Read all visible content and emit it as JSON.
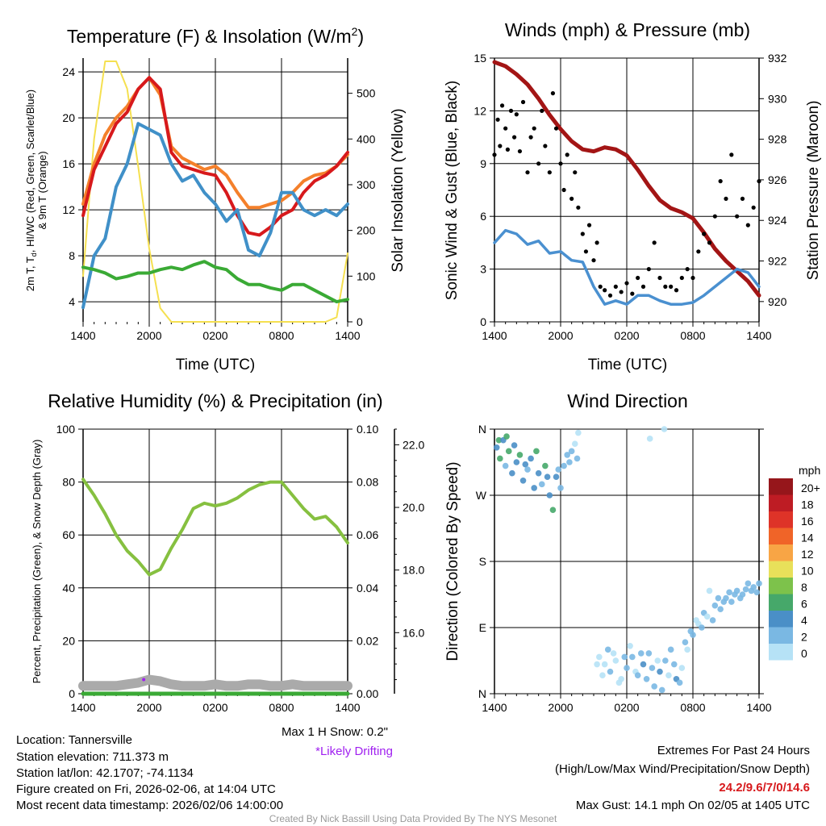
{
  "colors": {
    "temp": "#d7191c",
    "temp9m": "#f4802b",
    "dewpoint": "#3aaa35",
    "hiwc": "#4090c8",
    "solar": "#f5e050",
    "wind": "#4a90d0",
    "gust": "#000000",
    "pressure": "#a31515",
    "rh": "#86c040",
    "precip": "#3aaa35",
    "snow": "#aaaaaa",
    "drift": "#a020f0",
    "extremes": "#d7191c"
  },
  "xticks": [
    "1400",
    "2000",
    "0200",
    "0800",
    "1400"
  ],
  "chart_data": [
    {
      "type": "line",
      "title": "Temperature (F) & Insolation (W/m",
      "title_sup": "2",
      "title_end": ")",
      "xlabel": "Time (UTC)",
      "ylabel_line1": "2m T, T",
      "ylabel_sub": "d",
      "ylabel_line1b": ", HI/WC (Red, Green, Scarlet/Blue)",
      "ylabel_line2": "& 9m T (Orange)",
      "y2label": "Solar Insolation (Yellow)",
      "ylim": [
        2.25,
        25.2
      ],
      "y2lim": [
        0,
        577
      ],
      "yticks": [
        4,
        8,
        12,
        16,
        20,
        24
      ],
      "y2ticks": [
        0,
        100,
        200,
        300,
        400,
        500
      ],
      "x_hours": [
        0,
        1,
        2,
        3,
        4,
        5,
        6,
        7,
        8,
        9,
        10,
        11,
        12,
        13,
        14,
        15,
        16,
        17,
        18,
        19,
        20,
        21,
        22,
        23,
        24
      ],
      "series": [
        {
          "name": "Solar Insolation",
          "axis": "y2",
          "color_key": "solar",
          "values": [
            100,
            400,
            570,
            570,
            510,
            340,
            160,
            30,
            0,
            0,
            0,
            0,
            0,
            0,
            0,
            0,
            0,
            0,
            0,
            0,
            0,
            0,
            0,
            10,
            150
          ]
        },
        {
          "name": "9m T",
          "axis": "y",
          "color_key": "temp9m",
          "values": [
            12.5,
            16,
            18.5,
            20,
            21,
            22.5,
            23.5,
            22,
            17.5,
            16.5,
            16,
            15.5,
            15.8,
            15,
            13.5,
            12.2,
            12.2,
            12.5,
            12.8,
            13.5,
            14.5,
            15,
            15.2,
            15.8,
            16.8
          ]
        },
        {
          "name": "2m T",
          "axis": "y",
          "color_key": "temp",
          "values": [
            11.5,
            15.5,
            17.5,
            19.5,
            20.5,
            22.5,
            23.5,
            22.5,
            17,
            15.8,
            15.5,
            15.2,
            15,
            13.5,
            11.5,
            10,
            9.8,
            10.5,
            11.5,
            12,
            13.5,
            14.5,
            15,
            15.8,
            17
          ]
        },
        {
          "name": "HI/WC",
          "axis": "y",
          "color_key": "hiwc",
          "values": [
            3.5,
            8,
            9.5,
            14,
            16,
            19.5,
            19,
            18.5,
            16,
            14.5,
            15,
            13.5,
            12.5,
            11,
            12,
            8.5,
            8,
            10,
            13.5,
            13.5,
            12,
            11.5,
            12,
            11.5,
            12.5
          ]
        },
        {
          "name": "Dewpoint",
          "axis": "y",
          "color_key": "dewpoint",
          "values": [
            7,
            6.8,
            6.5,
            6,
            6.2,
            6.5,
            6.5,
            6.8,
            7,
            6.8,
            7.2,
            7.5,
            7,
            6.8,
            6,
            5.5,
            5.5,
            5.2,
            5,
            5.5,
            5.5,
            5,
            4.5,
            4,
            4.2
          ]
        }
      ]
    },
    {
      "type": "line",
      "title": "Winds (mph) & Pressure (mb)",
      "xlabel": "Time (UTC)",
      "ylabel": "Sonic Wind & Gust (Blue, Black)",
      "y2label": "Station Pressure (Maroon)",
      "ylim": [
        0,
        15
      ],
      "y2lim": [
        919,
        932
      ],
      "yticks": [
        0,
        3,
        6,
        9,
        12,
        15
      ],
      "y2ticks": [
        920,
        922,
        924,
        926,
        928,
        930,
        932
      ],
      "x_hours": [
        0,
        1,
        2,
        3,
        4,
        5,
        6,
        7,
        8,
        9,
        10,
        11,
        12,
        13,
        14,
        15,
        16,
        17,
        18,
        19,
        20,
        21,
        22,
        23,
        24
      ],
      "pressure": [
        931.8,
        931.6,
        931.2,
        930.7,
        930,
        929.2,
        928.5,
        927.9,
        927.5,
        927.4,
        927.6,
        927.5,
        927.2,
        926.5,
        925.7,
        925,
        924.6,
        924.4,
        924.1,
        923.4,
        922.6,
        922,
        921.5,
        921,
        920.3
      ],
      "wind": [
        4.5,
        5.2,
        5,
        4.4,
        4.6,
        3.9,
        4,
        3.5,
        3.4,
        2,
        1,
        1.2,
        1,
        1.5,
        1.5,
        1.2,
        1,
        1,
        1.1,
        1.5,
        2,
        2.5,
        3,
        2.8,
        2
      ],
      "gusts": [
        [
          0,
          9.5
        ],
        [
          0.3,
          11.5
        ],
        [
          0.5,
          10
        ],
        [
          0.7,
          12.3
        ],
        [
          1,
          11
        ],
        [
          1.2,
          9.8
        ],
        [
          1.5,
          12
        ],
        [
          1.8,
          10.5
        ],
        [
          2,
          11.8
        ],
        [
          2.3,
          9.7
        ],
        [
          2.6,
          12.5
        ],
        [
          3,
          8.5
        ],
        [
          3.3,
          10.5
        ],
        [
          3.6,
          11
        ],
        [
          4,
          9
        ],
        [
          4.3,
          12
        ],
        [
          4.6,
          10
        ],
        [
          5,
          8.5
        ],
        [
          5.3,
          13
        ],
        [
          5.6,
          11
        ],
        [
          6,
          9
        ],
        [
          6.3,
          7.5
        ],
        [
          6.6,
          9.5
        ],
        [
          7,
          7
        ],
        [
          7.3,
          8.5
        ],
        [
          7.6,
          6.5
        ],
        [
          8,
          5
        ],
        [
          8.3,
          4
        ],
        [
          8.6,
          5.5
        ],
        [
          9,
          3.5
        ],
        [
          9.3,
          4.5
        ],
        [
          9.6,
          2
        ],
        [
          10,
          1.8
        ],
        [
          10.5,
          1.5
        ],
        [
          11,
          2
        ],
        [
          11.5,
          1.7
        ],
        [
          12,
          2.2
        ],
        [
          12.5,
          1.6
        ],
        [
          13,
          2.5
        ],
        [
          13.5,
          2
        ],
        [
          14,
          3
        ],
        [
          14.5,
          4.5
        ],
        [
          15,
          2.5
        ],
        [
          15.5,
          2
        ],
        [
          16,
          2
        ],
        [
          16.5,
          1.8
        ],
        [
          17,
          2.5
        ],
        [
          17.5,
          3
        ],
        [
          18,
          2.5
        ],
        [
          18.5,
          4
        ],
        [
          19,
          5
        ],
        [
          19.5,
          4.5
        ],
        [
          20,
          6
        ],
        [
          20.5,
          8
        ],
        [
          21,
          7
        ],
        [
          21.5,
          9.5
        ],
        [
          22,
          6
        ],
        [
          22.5,
          7
        ],
        [
          23,
          5.5
        ],
        [
          23.5,
          6.5
        ],
        [
          24,
          8
        ]
      ]
    },
    {
      "type": "line",
      "title": "Relative Humidity (%) & Precipitation (in)",
      "ylabel": "Percent, Precipitation (Green), & Snow Depth (Gray)",
      "ylim": [
        0,
        100
      ],
      "y2lim": [
        0,
        0.1
      ],
      "y3lim": [
        14.05,
        22.5
      ],
      "yticks": [
        0,
        20,
        40,
        60,
        80,
        100
      ],
      "y2ticks": [
        "0.00",
        "0.02",
        "0.04",
        "0.06",
        "0.08",
        "0.10"
      ],
      "y3ticks": [
        "16.0",
        "18.0",
        "20.0",
        "22.0"
      ],
      "x_hours": [
        0,
        1,
        2,
        3,
        4,
        5,
        6,
        7,
        8,
        9,
        10,
        11,
        12,
        13,
        14,
        15,
        16,
        17,
        18,
        19,
        20,
        21,
        22,
        23,
        24
      ],
      "rh": [
        81,
        75,
        68,
        60,
        54,
        50,
        45,
        47,
        55,
        62,
        70,
        72,
        71,
        72,
        74,
        77,
        79,
        80,
        80,
        75,
        70,
        66,
        67,
        63,
        57
      ],
      "precip": [
        0,
        0,
        0,
        0,
        0,
        0,
        0,
        0,
        0,
        0,
        0,
        0,
        0,
        0,
        0,
        0,
        0,
        0,
        0,
        0,
        0,
        0,
        0,
        0,
        0
      ],
      "snow_depth": [
        14.3,
        14.3,
        14.3,
        14.3,
        14.35,
        14.4,
        14.5,
        14.45,
        14.35,
        14.3,
        14.3,
        14.3,
        14.35,
        14.3,
        14.3,
        14.35,
        14.35,
        14.3,
        14.3,
        14.35,
        14.3,
        14.3,
        14.3,
        14.3,
        14.3
      ],
      "drifting_points": [
        [
          5.5,
          14.5
        ]
      ],
      "max_snow_label": "Max 1 H Snow: 0.2\"",
      "drifting_label": "*Likely Drifting"
    },
    {
      "type": "scatter",
      "title": "Wind Direction",
      "ylabel": "Direction (Colored By Speed)",
      "ylim": [
        0,
        360
      ],
      "yticks": [
        {
          "v": 0,
          "label": "N"
        },
        {
          "v": 90,
          "label": "E"
        },
        {
          "v": 180,
          "label": "S"
        },
        {
          "v": 270,
          "label": "W"
        },
        {
          "v": 360,
          "label": "N"
        }
      ],
      "legend_title": "mph",
      "legend": [
        {
          "label": "20+",
          "color": "#96161b"
        },
        {
          "label": "18",
          "color": "#be1c24"
        },
        {
          "label": "16",
          "color": "#de3328"
        },
        {
          "label": "14",
          "color": "#f06428"
        },
        {
          "label": "12",
          "color": "#f8a545"
        },
        {
          "label": "10",
          "color": "#e8e05a"
        },
        {
          "label": "8",
          "color": "#7dc24b"
        },
        {
          "label": "6",
          "color": "#46a86a"
        },
        {
          "label": "4",
          "color": "#4a8fc7"
        },
        {
          "label": "2",
          "color": "#7ab8e3"
        },
        {
          "label": "0",
          "color": "#b6e2f6"
        }
      ],
      "points": [
        [
          0.2,
          335,
          4
        ],
        [
          0.4,
          345,
          6
        ],
        [
          0.5,
          320,
          6
        ],
        [
          0.8,
          345,
          5
        ],
        [
          1,
          310,
          3
        ],
        [
          1.1,
          350,
          7
        ],
        [
          1.3,
          330,
          6
        ],
        [
          1.6,
          300,
          4
        ],
        [
          1.8,
          338,
          5
        ],
        [
          2,
          315,
          4
        ],
        [
          2.3,
          325,
          6
        ],
        [
          2.6,
          290,
          4
        ],
        [
          2.8,
          312,
          5
        ],
        [
          3,
          305,
          3
        ],
        [
          3.3,
          320,
          4
        ],
        [
          3.6,
          280,
          4
        ],
        [
          3.8,
          330,
          6
        ],
        [
          4,
          300,
          5
        ],
        [
          4.3,
          285,
          3
        ],
        [
          4.6,
          310,
          6
        ],
        [
          4.8,
          295,
          4
        ],
        [
          5,
          270,
          4
        ],
        [
          5.3,
          250,
          6
        ],
        [
          5.6,
          295,
          4
        ],
        [
          5.8,
          305,
          3
        ],
        [
          6,
          280,
          3
        ],
        [
          6.3,
          310,
          3
        ],
        [
          6.6,
          325,
          2
        ],
        [
          6.8,
          315,
          2
        ],
        [
          7,
          330,
          2
        ],
        [
          7.3,
          340,
          1
        ],
        [
          7.5,
          320,
          2
        ],
        [
          7.6,
          355,
          1
        ],
        [
          14.1,
          347,
          1
        ],
        [
          15.4,
          360,
          1
        ],
        [
          9.3,
          40,
          1
        ],
        [
          9.5,
          50,
          1
        ],
        [
          9.8,
          25,
          1
        ],
        [
          10,
          40,
          1
        ],
        [
          10.3,
          60,
          2
        ],
        [
          10.5,
          30,
          2
        ],
        [
          10.8,
          55,
          1
        ],
        [
          11,
          45,
          1
        ],
        [
          11.3,
          15,
          1
        ],
        [
          11.5,
          20,
          1
        ],
        [
          11.8,
          50,
          2
        ],
        [
          12,
          35,
          2
        ],
        [
          12.3,
          65,
          1
        ],
        [
          12.5,
          50,
          2
        ],
        [
          12.8,
          30,
          1
        ],
        [
          13,
          25,
          3
        ],
        [
          13.3,
          55,
          2
        ],
        [
          13.5,
          40,
          4
        ],
        [
          13.8,
          20,
          2
        ],
        [
          14,
          55,
          3
        ],
        [
          14.3,
          35,
          2
        ],
        [
          14.5,
          10,
          3
        ],
        [
          14.8,
          45,
          1
        ],
        [
          15,
          30,
          4
        ],
        [
          15.2,
          5,
          2
        ],
        [
          15.5,
          45,
          3
        ],
        [
          15.8,
          25,
          1
        ],
        [
          16,
          60,
          3
        ],
        [
          16.3,
          40,
          2
        ],
        [
          16.5,
          20,
          4
        ],
        [
          16.8,
          15,
          2
        ],
        [
          17,
          35,
          1
        ],
        [
          17.3,
          70,
          2
        ],
        [
          17.5,
          60,
          1
        ],
        [
          17.8,
          85,
          2
        ],
        [
          18,
          80,
          2
        ],
        [
          18.3,
          100,
          1
        ],
        [
          18.5,
          95,
          1
        ],
        [
          18.8,
          90,
          2
        ],
        [
          19,
          110,
          2
        ],
        [
          19.3,
          105,
          1
        ],
        [
          19.5,
          140,
          1
        ],
        [
          19.8,
          100,
          2
        ],
        [
          20,
          120,
          2
        ],
        [
          20.3,
          130,
          3
        ],
        [
          20.5,
          115,
          2
        ],
        [
          20.8,
          125,
          3
        ],
        [
          21,
          130,
          3
        ],
        [
          21.3,
          138,
          3
        ],
        [
          21.5,
          125,
          3
        ],
        [
          21.8,
          135,
          2
        ],
        [
          22,
          140,
          3
        ],
        [
          22.3,
          130,
          3
        ],
        [
          22.5,
          135,
          3
        ],
        [
          22.8,
          142,
          3
        ],
        [
          23,
          150,
          2
        ],
        [
          23.3,
          140,
          3
        ],
        [
          23.5,
          145,
          3
        ],
        [
          23.8,
          138,
          3
        ],
        [
          24,
          150,
          3
        ]
      ]
    }
  ],
  "info": {
    "location": "Location: Tannersville",
    "elevation": "Station elevation: 711.373 m",
    "latlon": "Station lat/lon: 42.1707; -74.1134",
    "created": "Figure created on Fri, 2026-02-06, at 14:04 UTC",
    "recent": "Most recent data timestamp: 2026/02/06 14:00:00"
  },
  "extremes": {
    "title": "Extremes For Past 24 Hours",
    "subtitle": "(High/Low/Max Wind/Precipitation/Snow Depth)",
    "values": "24.2/9.6/7/0/14.6",
    "max_gust": "Max Gust: 14.1 mph On 02/05 at 1405 UTC"
  },
  "credit": "Created By Nick Bassill Using Data Provided By The NYS Mesonet"
}
